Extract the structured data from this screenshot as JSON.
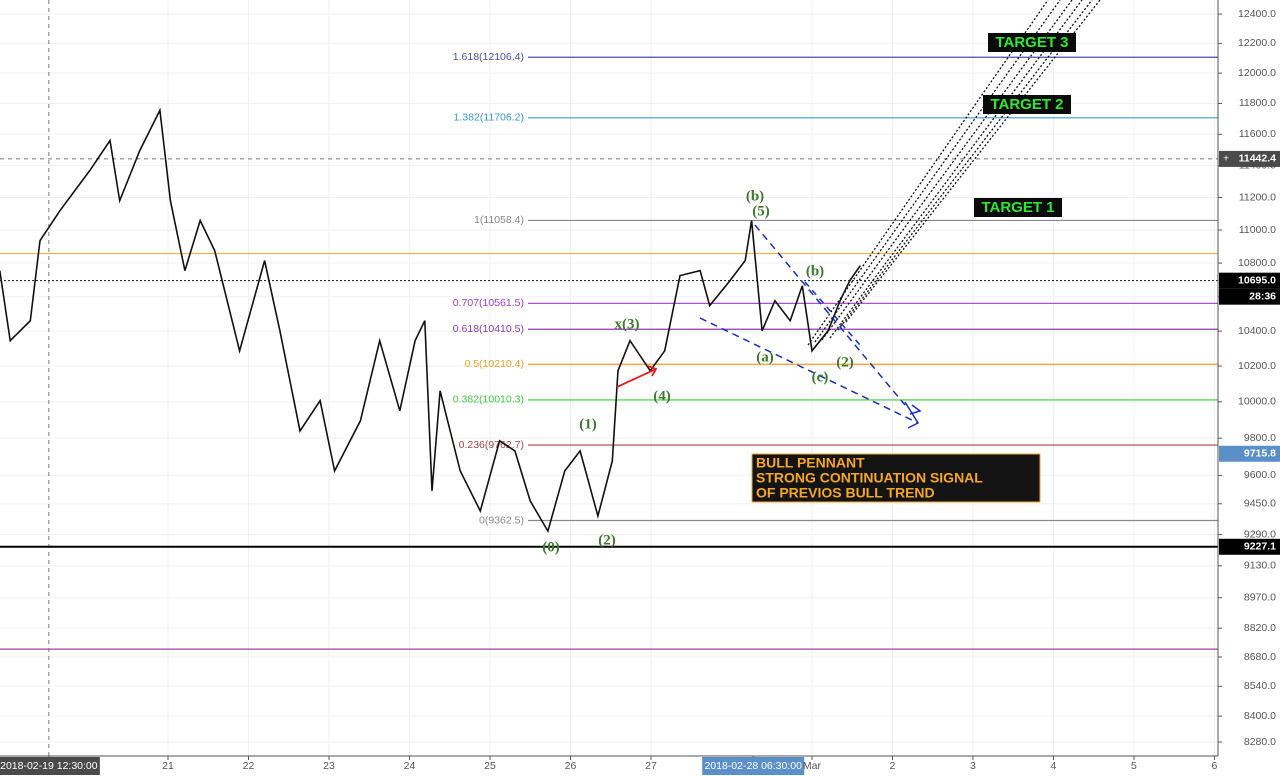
{
  "chart_data": {
    "type": "line",
    "color": "#111111",
    "log_scale": true,
    "grid": true,
    "xlim": [
      18.913,
      34.044
    ],
    "ylim": [
      8216,
      12497
    ],
    "x": [
      18.91,
      19.04,
      19.29,
      19.41,
      19.66,
      20.03,
      20.28,
      20.4,
      20.65,
      20.9,
      21.03,
      21.21,
      21.4,
      21.58,
      21.89,
      22.2,
      22.39,
      22.64,
      22.89,
      23.07,
      23.39,
      23.63,
      23.88,
      24.07,
      24.19,
      24.28,
      24.38,
      24.63,
      24.88,
      25.12,
      25.31,
      25.5,
      25.72,
      25.93,
      26.12,
      26.34,
      26.52,
      26.59,
      26.74,
      26.99,
      27.17,
      27.36,
      27.61,
      27.73,
      27.98,
      28.17,
      28.25,
      28.38,
      28.54,
      28.73,
      28.88,
      29.0,
      29.2,
      29.35,
      29.47,
      29.6
    ],
    "values": [
      10755,
      10345,
      10460,
      10935,
      11120,
      11370,
      11560,
      11180,
      11496,
      11755,
      11180,
      10755,
      11058,
      10875,
      10287,
      10815,
      10402,
      9840,
      10006,
      9624,
      9895,
      10345,
      9950,
      10345,
      10460,
      9518,
      10061,
      9624,
      9412,
      9786,
      9731,
      9465,
      9308,
      9624,
      9731,
      9386,
      9677,
      10174,
      10345,
      10174,
      10287,
      10725,
      10755,
      10548,
      10695,
      10815,
      11058,
      10402,
      10577,
      10460,
      10665,
      10287,
      10402,
      10577,
      10695,
      10785
    ],
    "xticks": [
      {
        "value": 19.52,
        "label": "2018-02-19 12:30:00",
        "bg": "#4a4a4a"
      },
      21,
      22,
      23,
      24,
      25,
      26,
      27,
      {
        "value": 28.27,
        "label": "2018-02-28 06:30:00",
        "bg": "#5b8fc7"
      },
      {
        "value": 29,
        "label": "Mar"
      },
      {
        "value": 30,
        "label": "2"
      },
      {
        "value": 31,
        "label": "3"
      },
      {
        "value": 32,
        "label": "4"
      },
      {
        "value": 33,
        "label": "5"
      },
      {
        "value": 34,
        "label": "6"
      }
    ],
    "yticks": [
      {
        "value": 12400,
        "label": "12400.0"
      },
      {
        "value": 12200,
        "label": "12200.0"
      },
      {
        "value": 12000,
        "label": "12000.0"
      },
      {
        "value": 11800,
        "label": "11800.0"
      },
      {
        "value": 11600,
        "label": "11600.0"
      },
      {
        "value": 11400,
        "label": "11400.0"
      },
      {
        "value": 11200,
        "label": "11200.0"
      },
      {
        "value": 11000,
        "label": "11000.0"
      },
      {
        "value": 10800,
        "label": "10800.0"
      },
      {
        "value": 10600,
        "label": "10600.0"
      },
      {
        "value": 10400,
        "label": "10400.0"
      },
      {
        "value": 10200,
        "label": "10200.0"
      },
      {
        "value": 10000,
        "label": "10000.0"
      },
      {
        "value": 9800,
        "label": "9800.0"
      },
      {
        "value": 9600,
        "label": "9600.0"
      },
      {
        "value": 9450,
        "label": "9450.0"
      },
      {
        "value": 9290,
        "label": "9290.0"
      },
      {
        "value": 9130,
        "label": "9130.0"
      },
      {
        "value": 8970,
        "label": "8970.0"
      },
      {
        "value": 8820,
        "label": "8820.0"
      },
      {
        "value": 8680,
        "label": "8680.0"
      },
      {
        "value": 8540,
        "label": "8540.0"
      },
      {
        "value": 8400,
        "label": "8400.0"
      },
      {
        "value": 8280,
        "label": "8280.0"
      }
    ],
    "levels": [
      {
        "label": "1.618(12106.4)",
        "value": 12106.4,
        "color": "#4b4fa8"
      },
      {
        "label": "1.382(11706.2)",
        "value": 11706.2,
        "color": "#3a9ad0"
      },
      {
        "label": "1(11058.4)",
        "value": 11058.4,
        "color": "#888888"
      },
      {
        "label": "0.707(10561.5)",
        "value": 10561.5,
        "color": "#a03cc8"
      },
      {
        "label": "0.618(10410.5)",
        "value": 10410.5,
        "color": "#8e3aa8"
      },
      {
        "label": "0.5(10210.4)",
        "value": 10210.4,
        "color": "#f0a020"
      },
      {
        "label": "0.382(10010.3)",
        "value": 10010.3,
        "color": "#3ccc3c"
      },
      {
        "label": "0.236(9762.7)",
        "value": 9762.7,
        "color": "#a04848"
      },
      {
        "label": "0(9362.5)",
        "value": 9362.5,
        "color": "#888888"
      }
    ],
    "lines": [
      {
        "value": 10857,
        "color": "#f0b040"
      },
      {
        "value": 8718,
        "color": "#a040a0"
      }
    ],
    "price_tags": [
      {
        "value": 11442.4,
        "label": "11442.4",
        "color": "#4a4a4a",
        "line": "dashed"
      },
      {
        "value": 10695,
        "label": "10695.0",
        "color": "#000000",
        "line": "dotted"
      },
      {
        "value": 9715.8,
        "label": "9715.8",
        "color": "#5b8fc7",
        "line": "none"
      },
      {
        "value": 9227.1,
        "label": "9227.1",
        "color": "#000000",
        "line": "thick"
      }
    ],
    "countdown": "28:36",
    "annotations": [
      "(b)",
      "(5)",
      "x(3)",
      "(4)",
      "(1)",
      "(2)",
      "(0)",
      "(a)",
      "(c)",
      "(2)",
      "(b)"
    ],
    "targets": [
      "TARGET 3",
      "TARGET 2",
      "TARGET 1"
    ],
    "note": [
      "BULL PENNANT",
      "STRONG CONTINUATION SIGNAL",
      "OF PREVIOS BULL TREND"
    ]
  }
}
